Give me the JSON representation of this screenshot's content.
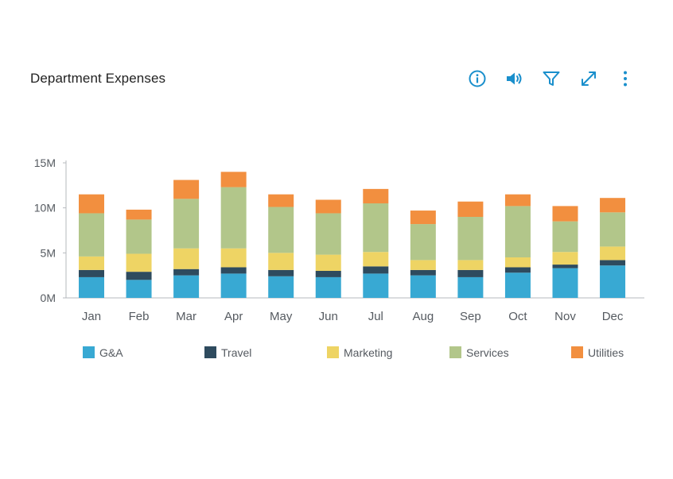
{
  "header": {
    "title": "Department Expenses"
  },
  "toolbar": {
    "icons": [
      "info-icon",
      "volume-icon",
      "filter-icon",
      "expand-icon",
      "more-vertical-icon"
    ],
    "accent": "#1a8fcc"
  },
  "chart_data": {
    "type": "bar",
    "stacked": true,
    "title": "Department Expenses",
    "xlabel": "",
    "ylabel": "",
    "ylim": [
      0,
      15
    ],
    "yticks": [
      0,
      5,
      10,
      15
    ],
    "ytick_labels": [
      "0M",
      "5M",
      "10M",
      "15M"
    ],
    "grid": false,
    "legend_position": "bottom",
    "categories": [
      "Jan",
      "Feb",
      "Mar",
      "Apr",
      "May",
      "Jun",
      "Jul",
      "Aug",
      "Sep",
      "Oct",
      "Nov",
      "Dec"
    ],
    "series": [
      {
        "name": "G&A",
        "color": "#38a9d3",
        "values": [
          2.3,
          2.0,
          2.5,
          2.7,
          2.4,
          2.3,
          2.7,
          2.5,
          2.3,
          2.8,
          3.3,
          3.6
        ]
      },
      {
        "name": "Travel",
        "color": "#2e4b5e",
        "values": [
          0.8,
          0.9,
          0.7,
          0.7,
          0.7,
          0.7,
          0.8,
          0.6,
          0.8,
          0.6,
          0.4,
          0.6
        ]
      },
      {
        "name": "Marketing",
        "color": "#eed464",
        "values": [
          1.5,
          2.0,
          2.3,
          2.1,
          1.9,
          1.8,
          1.6,
          1.1,
          1.1,
          1.1,
          1.4,
          1.5
        ]
      },
      {
        "name": "Services",
        "color": "#b2c68a",
        "values": [
          4.8,
          3.8,
          5.5,
          6.8,
          5.1,
          4.6,
          5.4,
          4.0,
          4.8,
          5.7,
          3.4,
          3.8
        ]
      },
      {
        "name": "Utilities",
        "color": "#f28f3f",
        "values": [
          2.1,
          1.1,
          2.1,
          1.7,
          1.4,
          1.5,
          1.6,
          1.5,
          1.7,
          1.3,
          1.7,
          1.6
        ]
      }
    ]
  }
}
